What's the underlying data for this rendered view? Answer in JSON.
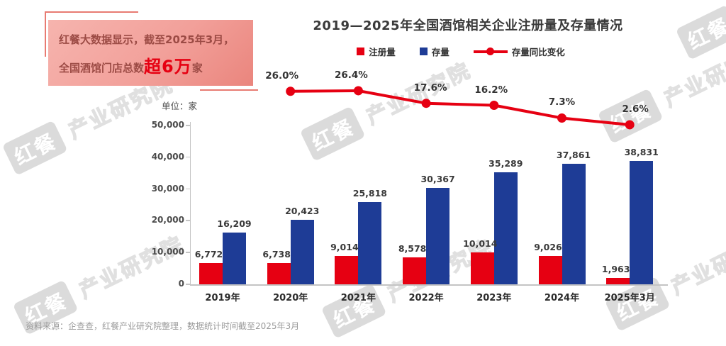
{
  "callout": {
    "line1": "红餐大数据显示，截至2025年3月，",
    "line2_prefix": "全国酒馆门店总数",
    "line2_highlight": "超6万",
    "line2_suffix": "家"
  },
  "unit_label": "单位：家",
  "source_note": "资料来源：企查查，红餐产业研究院整理，数据统计时间截至2025年3月",
  "watermark": {
    "brand": "红餐",
    "org": "产业研究院"
  },
  "colors": {
    "bar_red": "#e60012",
    "bar_blue": "#1e3c96",
    "line_red": "#e60012",
    "callout_text": "#9c4b45",
    "highlight_red": "#e60012"
  },
  "chart_data": {
    "type": "bar",
    "subtype": "grouped bars with line overlay (YoY %)",
    "title": "2019—2025年全国酒馆相关企业注册量及存量情况",
    "unit": "家",
    "categories": [
      "2019年",
      "2020年",
      "2021年",
      "2022年",
      "2023年",
      "2024年",
      "2025年3月"
    ],
    "series": [
      {
        "name": "注册量",
        "type": "bar",
        "color": "#e60012",
        "values": [
          6772,
          6738,
          9014,
          8578,
          10014,
          9026,
          1963
        ]
      },
      {
        "name": "存量",
        "type": "bar",
        "color": "#1e3c96",
        "values": [
          16209,
          20423,
          25818,
          30367,
          35289,
          37861,
          38831
        ]
      },
      {
        "name": "存量同比变化",
        "type": "line",
        "color": "#e60012",
        "unit": "%",
        "values": [
          null,
          26.0,
          26.4,
          17.6,
          16.2,
          7.3,
          2.6
        ]
      }
    ],
    "ylim": [
      0,
      50000
    ],
    "yticks": [
      "0",
      "10,000",
      "20,000",
      "30,000",
      "40,000",
      "50,000"
    ],
    "legend_position": "top",
    "grid": false
  }
}
